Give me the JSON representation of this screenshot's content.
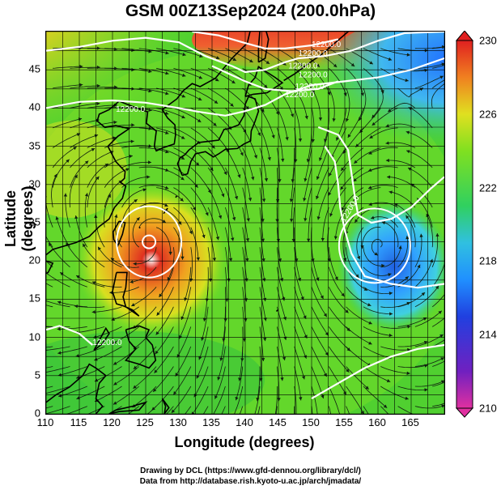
{
  "title": "GSM 00Z13Sep2024 (200.0hPa)",
  "xlabel": "Longitude (degrees)",
  "ylabel": "Latitude  (degrees)",
  "x_ticks": [
    "110",
    "115",
    "120",
    "125",
    "130",
    "135",
    "140",
    "145",
    "150",
    "155",
    "160",
    "165"
  ],
  "y_ticks": [
    "0",
    "5",
    "10",
    "15",
    "20",
    "25",
    "30",
    "35",
    "40",
    "45"
  ],
  "colorbar": {
    "ticks": [
      "230",
      "226",
      "222",
      "218",
      "214",
      "210"
    ],
    "colors": [
      "#d0207a",
      "#3020c0",
      "#2080ff",
      "#40c8ff",
      "#30d060",
      "#80e020",
      "#f0e020",
      "#f0a020",
      "#e05020",
      "#d02020"
    ]
  },
  "contour_labels": [
    "12200.0",
    "12200.0",
    "12200.0",
    "12200.0",
    "12200.0",
    "12200.0",
    "12200.0",
    "12200.0",
    "12200.0"
  ],
  "credits": {
    "line1": "Drawing by DCL (https://www.gfd-dennou.org/library/dcl/)",
    "line2": "Data from http://database.rish.kyoto-u.ac.jp/arch/jmadata/"
  },
  "chart_data": {
    "type": "heatmap",
    "title": "GSM 00Z13Sep2024 (200.0hPa)",
    "xlabel": "Longitude (degrees)",
    "ylabel": "Latitude  (degrees)",
    "xlim": [
      110,
      170
    ],
    "ylim": [
      0,
      50
    ],
    "color_range": [
      210,
      230
    ],
    "features": [
      {
        "kind": "warm-core",
        "lon": 125.5,
        "lat": 22.5
      },
      {
        "kind": "cold-core",
        "lon": 160,
        "lat": 22
      },
      {
        "kind": "warm-band",
        "lon": 135,
        "lat": 49
      },
      {
        "kind": "cold-area",
        "lon": 160,
        "lat": 45
      }
    ]
  }
}
